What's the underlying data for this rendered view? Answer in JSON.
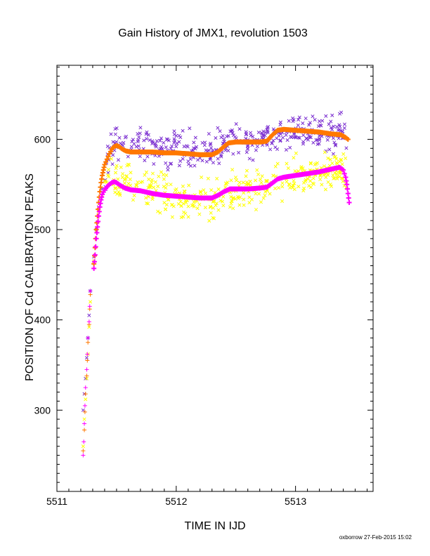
{
  "chart_data": {
    "type": "scatter",
    "title": "Gain History of JMX1, revolution 1503",
    "xlabel": "TIME IN IJD",
    "ylabel": "POSITION OF Cd CALIBRATION PEAKS",
    "xlim": [
      5511.0,
      5513.65
    ],
    "ylim": [
      210,
      682
    ],
    "x_ticks": [
      5511,
      5512,
      5513
    ],
    "y_ticks": [
      300,
      400,
      500,
      600
    ],
    "grid": false,
    "series": [
      {
        "marker": "x",
        "color": "#7b2fd0",
        "start": [
          [
            5511.22,
            300
          ],
          [
            5511.23,
            318
          ],
          [
            5511.24,
            335
          ],
          [
            5511.25,
            358
          ],
          [
            5511.26,
            380
          ],
          [
            5511.27,
            405
          ],
          [
            5511.28,
            432
          ],
          [
            5511.31,
            470
          ],
          [
            5511.33,
            500
          ],
          [
            5511.35,
            525
          ],
          [
            5511.38,
            545
          ]
        ],
        "trend": [
          [
            5511.4,
            560
          ],
          [
            5511.45,
            590
          ],
          [
            5511.5,
            600
          ],
          [
            5511.6,
            595
          ],
          [
            5511.8,
            590
          ],
          [
            5512.0,
            588
          ],
          [
            5512.2,
            585
          ],
          [
            5512.3,
            585
          ],
          [
            5512.4,
            595
          ],
          [
            5512.5,
            600
          ],
          [
            5512.7,
            598
          ],
          [
            5512.8,
            600
          ],
          [
            5512.9,
            613
          ],
          [
            5513.0,
            612
          ],
          [
            5513.2,
            610
          ],
          [
            5513.38,
            608
          ],
          [
            5513.43,
            600
          ]
        ],
        "spread": 14,
        "count": 380,
        "x_range": [
          5511.4,
          5513.43
        ]
      },
      {
        "marker": "x",
        "color": "#ffff00",
        "start": [
          [
            5511.22,
            260
          ],
          [
            5511.23,
            290
          ],
          [
            5511.24,
            312
          ],
          [
            5511.25,
            335
          ],
          [
            5511.26,
            362
          ],
          [
            5511.27,
            392
          ],
          [
            5511.28,
            420
          ],
          [
            5511.31,
            465
          ],
          [
            5511.33,
            498
          ],
          [
            5511.35,
            520
          ],
          [
            5511.38,
            538
          ]
        ],
        "trend": [
          [
            5511.4,
            548
          ],
          [
            5511.5,
            556
          ],
          [
            5511.6,
            550
          ],
          [
            5511.8,
            540
          ],
          [
            5512.0,
            535
          ],
          [
            5512.2,
            532
          ],
          [
            5512.3,
            530
          ],
          [
            5512.4,
            538
          ],
          [
            5512.5,
            542
          ],
          [
            5512.7,
            545
          ],
          [
            5512.8,
            548
          ],
          [
            5512.9,
            557
          ],
          [
            5513.0,
            560
          ],
          [
            5513.2,
            565
          ],
          [
            5513.38,
            567
          ],
          [
            5513.43,
            560
          ]
        ],
        "spread": 15,
        "count": 380,
        "x_range": [
          5511.4,
          5513.43
        ]
      },
      {
        "marker": "+",
        "color": "#ff7800",
        "points": [
          [
            5511.22,
            255
          ],
          [
            5511.23,
            278
          ],
          [
            5511.235,
            298
          ],
          [
            5511.24,
            318
          ],
          [
            5511.25,
            338
          ],
          [
            5511.255,
            355
          ],
          [
            5511.26,
            375
          ],
          [
            5511.27,
            395
          ],
          [
            5511.275,
            412
          ],
          [
            5511.28,
            428
          ],
          [
            5511.31,
            462
          ],
          [
            5511.32,
            480
          ],
          [
            5511.33,
            500
          ],
          [
            5511.34,
            515
          ],
          [
            5511.35,
            530
          ],
          [
            5511.36,
            542
          ],
          [
            5511.37,
            552
          ],
          [
            5511.38,
            560
          ],
          [
            5511.39,
            566
          ],
          [
            5511.4,
            572
          ],
          [
            5511.42,
            578
          ],
          [
            5511.44,
            584
          ],
          [
            5511.46,
            589
          ],
          [
            5511.48,
            592
          ],
          [
            5511.5,
            593
          ],
          [
            5511.52,
            592
          ],
          [
            5511.55,
            589
          ],
          [
            5511.58,
            587
          ],
          [
            5511.62,
            586
          ],
          [
            5511.7,
            586
          ],
          [
            5511.8,
            586
          ],
          [
            5511.9,
            585
          ],
          [
            5512.0,
            585
          ],
          [
            5512.1,
            584
          ],
          [
            5512.2,
            583
          ],
          [
            5512.3,
            583
          ],
          [
            5512.35,
            586
          ],
          [
            5512.4,
            592
          ],
          [
            5512.44,
            596
          ],
          [
            5512.5,
            597
          ],
          [
            5512.6,
            597
          ],
          [
            5512.7,
            597
          ],
          [
            5512.76,
            598
          ],
          [
            5512.8,
            604
          ],
          [
            5512.85,
            610
          ],
          [
            5512.9,
            611
          ],
          [
            5513.0,
            610
          ],
          [
            5513.1,
            609
          ],
          [
            5513.2,
            608
          ],
          [
            5513.3,
            606
          ],
          [
            5513.38,
            605
          ],
          [
            5513.42,
            602
          ],
          [
            5513.44,
            600
          ]
        ]
      },
      {
        "marker": "+",
        "color": "#ff00ff",
        "points": [
          [
            5511.22,
            250
          ],
          [
            5511.225,
            265
          ],
          [
            5511.23,
            285
          ],
          [
            5511.235,
            305
          ],
          [
            5511.24,
            325
          ],
          [
            5511.25,
            345
          ],
          [
            5511.255,
            362
          ],
          [
            5511.26,
            380
          ],
          [
            5511.27,
            398
          ],
          [
            5511.275,
            415
          ],
          [
            5511.28,
            432
          ],
          [
            5511.31,
            457
          ],
          [
            5511.32,
            472
          ],
          [
            5511.33,
            490
          ],
          [
            5511.34,
            503
          ],
          [
            5511.35,
            515
          ],
          [
            5511.36,
            525
          ],
          [
            5511.37,
            533
          ],
          [
            5511.38,
            539
          ],
          [
            5511.4,
            544
          ],
          [
            5511.43,
            549
          ],
          [
            5511.46,
            552
          ],
          [
            5511.48,
            553
          ],
          [
            5511.5,
            552
          ],
          [
            5511.53,
            549
          ],
          [
            5511.57,
            546
          ],
          [
            5511.62,
            544
          ],
          [
            5511.7,
            543
          ],
          [
            5511.8,
            540
          ],
          [
            5511.9,
            538
          ],
          [
            5512.0,
            537
          ],
          [
            5512.1,
            536
          ],
          [
            5512.2,
            535
          ],
          [
            5512.3,
            535
          ],
          [
            5512.35,
            538
          ],
          [
            5512.4,
            542
          ],
          [
            5512.45,
            545
          ],
          [
            5512.5,
            545
          ],
          [
            5512.6,
            545
          ],
          [
            5512.7,
            546
          ],
          [
            5512.76,
            547
          ],
          [
            5512.8,
            551
          ],
          [
            5512.85,
            556
          ],
          [
            5512.9,
            558
          ],
          [
            5513.0,
            560
          ],
          [
            5513.1,
            562
          ],
          [
            5513.2,
            564
          ],
          [
            5513.3,
            567
          ],
          [
            5513.37,
            569
          ],
          [
            5513.4,
            566
          ],
          [
            5513.42,
            558
          ],
          [
            5513.43,
            550
          ],
          [
            5513.44,
            540
          ],
          [
            5513.45,
            530
          ]
        ]
      }
    ]
  },
  "footer": {
    "credit": "oxborrow 27-Feb-2015 15:02"
  }
}
